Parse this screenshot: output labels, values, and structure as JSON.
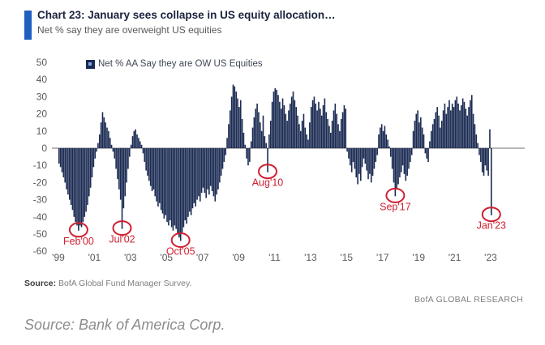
{
  "header": {
    "title": "Chart 23: January sees collapse in US equity allocation…",
    "subtitle": "Net % say they are overweight US equities"
  },
  "chart_data": {
    "type": "bar",
    "title": "Chart 23: January sees collapse in US equity allocation…",
    "subtitle": "Net % say they are overweight US equities",
    "legend_label": "Net % AA Say they are OW US Equities",
    "x_start": "1999-01",
    "x_step_months": 1,
    "x_end": "2023-01",
    "ylim": [
      -60,
      50
    ],
    "yticks": [
      50,
      40,
      30,
      20,
      10,
      0,
      -10,
      -20,
      -30,
      -40,
      -50,
      -60
    ],
    "xtick_labels": [
      "'99",
      "'01",
      "'03",
      "'05",
      "'07",
      "'09",
      "'11",
      "'13",
      "'15",
      "'17",
      "'19",
      "'21",
      "'23"
    ],
    "grid": false,
    "legend_position": "top-left",
    "values": [
      -9,
      -11,
      -14,
      -17,
      -20,
      -24,
      -27,
      -30,
      -33,
      -36,
      -40,
      -43,
      -45,
      -48,
      -45,
      -46,
      -43,
      -40,
      -37,
      -33,
      -28,
      -23,
      -17,
      -11,
      -6,
      -2,
      3,
      8,
      15,
      21,
      18,
      15,
      12,
      10,
      6,
      2,
      -2,
      -6,
      -12,
      -18,
      -24,
      -30,
      -47,
      -35,
      -28,
      -20,
      -12,
      -5,
      2,
      7,
      10,
      11,
      8,
      6,
      4,
      2,
      -3,
      -8,
      -13,
      -16,
      -19,
      -22,
      -25,
      -24,
      -28,
      -31,
      -34,
      -32,
      -36,
      -38,
      -41,
      -39,
      -43,
      -45,
      -42,
      -46,
      -48,
      -45,
      -47,
      -50,
      -52,
      -54,
      -49,
      -46,
      -42,
      -44,
      -40,
      -37,
      -39,
      -35,
      -32,
      -34,
      -30,
      -28,
      -31,
      -26,
      -23,
      -26,
      -29,
      -24,
      -27,
      -22,
      -25,
      -28,
      -31,
      -27,
      -24,
      -20,
      -16,
      -12,
      -8,
      -4,
      6,
      14,
      22,
      30,
      37,
      36,
      33,
      29,
      24,
      28,
      17,
      9,
      2,
      -6,
      -10,
      -8,
      4,
      12,
      18,
      23,
      26,
      21,
      15,
      10,
      19,
      7,
      3,
      -14,
      8,
      16,
      27,
      33,
      35,
      34,
      31,
      27,
      23,
      29,
      25,
      20,
      16,
      22,
      26,
      30,
      33,
      28,
      24,
      19,
      14,
      10,
      16,
      20,
      12,
      8,
      5,
      15,
      24,
      28,
      30,
      26,
      22,
      27,
      23,
      19,
      25,
      29,
      21,
      17,
      13,
      9,
      16,
      22,
      26,
      20,
      14,
      10,
      17,
      21,
      25,
      23,
      -2,
      -6,
      -10,
      -14,
      -8,
      -12,
      -17,
      -21,
      -15,
      -19,
      -11,
      -6,
      -9,
      -13,
      -18,
      -15,
      -20,
      -16,
      -12,
      -8,
      -4,
      8,
      12,
      14,
      10,
      13,
      8,
      5,
      1,
      -5,
      -12,
      -20,
      -28,
      -24,
      -21,
      -17,
      -14,
      -10,
      -15,
      -19,
      -16,
      -12,
      -8,
      -4,
      10,
      16,
      20,
      22,
      15,
      18,
      12,
      8,
      -3,
      -6,
      -8,
      4,
      10,
      14,
      17,
      21,
      24,
      19,
      12,
      16,
      22,
      26,
      20,
      24,
      28,
      22,
      26,
      24,
      28,
      30,
      26,
      22,
      25,
      29,
      27,
      23,
      19,
      24,
      28,
      31,
      20,
      14,
      8,
      3,
      -4,
      -8,
      -14,
      -16,
      -10,
      -13,
      -16,
      11,
      -39
    ],
    "annotations": [
      {
        "label": "Feb'00",
        "index": 13,
        "value": -48
      },
      {
        "label": "Jul'02",
        "index": 42,
        "value": -47
      },
      {
        "label": "Oct'05",
        "index": 81,
        "value": -54
      },
      {
        "label": "Aug'10",
        "index": 139,
        "value": -14
      },
      {
        "label": "Sep'17",
        "index": 224,
        "value": -28
      },
      {
        "label": "Jan'23",
        "index": 288,
        "value": -39
      }
    ],
    "colors": {
      "bar": "#1a2a52",
      "annotation": "#cf2030",
      "axis_text": "#595959",
      "zero_line": "#8c8c8c",
      "accent": "#1f5fbf"
    }
  },
  "footer": {
    "source_bold": "Source:",
    "source_text": " BofA Global Fund Manager Survey.",
    "brand": "BofA GLOBAL RESEARCH"
  },
  "caption": "Source: Bank of America Corp."
}
